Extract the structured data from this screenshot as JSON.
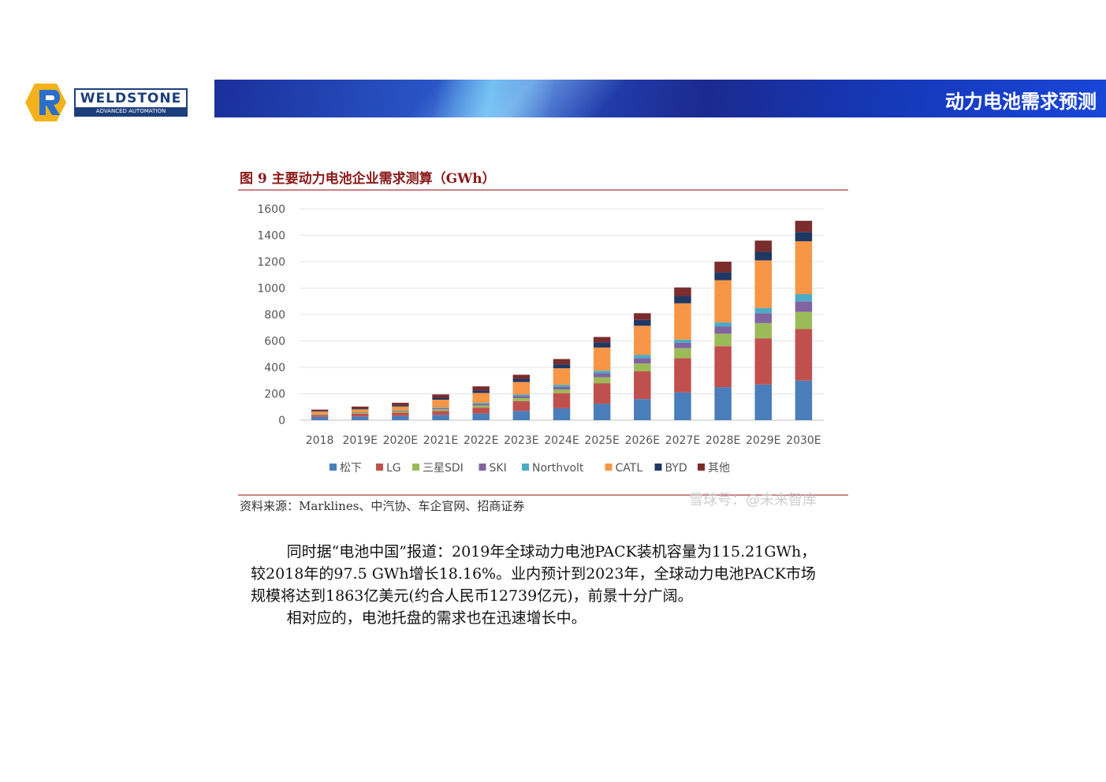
{
  "header": {
    "logo_name": "WELDSTONE",
    "logo_sub": "ADVANCED AUTOMATION",
    "title": "动力电池需求预测"
  },
  "figure": {
    "caption": "图 9  主要动力电池企业需求测算（GWh）",
    "source": "资料来源：Marklines、中汽协、车企官网、招商证券",
    "watermark": "雪球号：@未来智库"
  },
  "chart_data": {
    "type": "bar",
    "stacked": true,
    "categories": [
      "2018",
      "2019E",
      "2020E",
      "2021E",
      "2022E",
      "2023E",
      "2024E",
      "2025E",
      "2026E",
      "2027E",
      "2028E",
      "2029E",
      "2030E"
    ],
    "ylim": [
      0,
      1600
    ],
    "yticks": [
      0,
      200,
      400,
      600,
      800,
      1000,
      1200,
      1400,
      1600
    ],
    "grid": true,
    "legend_position": "bottom",
    "series": [
      {
        "name": "松下",
        "color": "#4a7ebb",
        "values": [
          25,
          28,
          32,
          40,
          50,
          70,
          90,
          125,
          160,
          210,
          250,
          270,
          300
        ]
      },
      {
        "name": "LG",
        "color": "#c0504d",
        "values": [
          15,
          20,
          25,
          30,
          45,
          75,
          115,
          155,
          210,
          260,
          310,
          350,
          390
        ]
      },
      {
        "name": "三星SDI",
        "color": "#9bbb59",
        "values": [
          5,
          8,
          10,
          12,
          16,
          22,
          28,
          45,
          60,
          75,
          95,
          115,
          130
        ]
      },
      {
        "name": "SKI",
        "color": "#8064a2",
        "values": [
          2,
          4,
          5,
          8,
          12,
          15,
          20,
          30,
          40,
          40,
          55,
          75,
          80
        ]
      },
      {
        "name": "Northvolt",
        "color": "#4bacc6",
        "values": [
          0,
          0,
          2,
          5,
          8,
          12,
          15,
          20,
          25,
          25,
          30,
          40,
          55
        ]
      },
      {
        "name": "CATL",
        "color": "#f79646",
        "values": [
          18,
          22,
          30,
          60,
          75,
          95,
          125,
          175,
          220,
          275,
          320,
          360,
          400
        ]
      },
      {
        "name": "BYD",
        "color": "#1f3864",
        "values": [
          5,
          7,
          10,
          15,
          20,
          25,
          30,
          40,
          45,
          55,
          60,
          65,
          70
        ]
      },
      {
        "name": "其他",
        "color": "#7b2c2c",
        "values": [
          10,
          14,
          18,
          25,
          30,
          30,
          40,
          40,
          50,
          65,
          80,
          85,
          85
        ]
      }
    ]
  },
  "body": {
    "p1": "同时据“电池中国”报道：2019年全球动力电池PACK装机容量为115.21GWh，较2018年的97.5 GWh增长18.16%。业内预计到2023年，全球动力电池PACK市场规模将达到1863亿美元(约合人民币12739亿元)，前景十分广阔。",
    "p2": "相对应的，电池托盘的需求也在迅速增长中。"
  }
}
